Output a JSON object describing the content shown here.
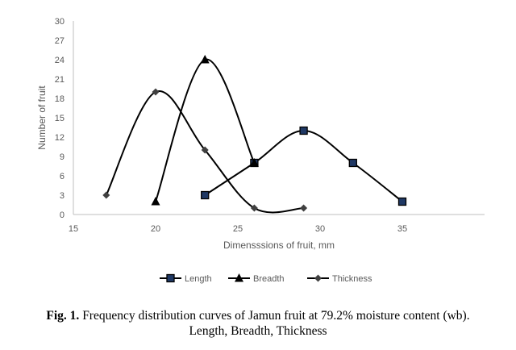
{
  "chart_data": {
    "type": "line",
    "smooth": true,
    "xlabel": "Dimensssions of fruit, mm",
    "ylabel": "Number of fruit",
    "xlim": [
      15,
      40
    ],
    "ylim": [
      0,
      30
    ],
    "xticks": [
      15,
      20,
      25,
      30,
      35
    ],
    "yticks": [
      0,
      3,
      6,
      9,
      12,
      15,
      18,
      21,
      24,
      27,
      30
    ],
    "grid": false,
    "legend_position": "bottom",
    "series": [
      {
        "name": "Length",
        "marker": "square",
        "color": "#000000",
        "markerFill": "#1f3864",
        "points": [
          [
            23,
            3
          ],
          [
            26,
            8
          ],
          [
            29,
            13
          ],
          [
            32,
            8
          ],
          [
            35,
            2
          ]
        ]
      },
      {
        "name": "Breadth",
        "marker": "triangle",
        "color": "#000000",
        "markerFill": "#000000",
        "points": [
          [
            20,
            2
          ],
          [
            23,
            24
          ],
          [
            26,
            8
          ]
        ]
      },
      {
        "name": "Thickness",
        "marker": "diamond",
        "color": "#000000",
        "markerFill": "#404040",
        "points": [
          [
            17,
            3
          ],
          [
            20,
            19
          ],
          [
            23,
            10
          ],
          [
            26,
            1
          ],
          [
            29,
            1
          ]
        ]
      }
    ]
  },
  "caption": {
    "label": "Fig. 1.",
    "line1": " Frequency distribution curves of Jamun fruit at 79.2% moisture content (wb).",
    "line2": "Length, Breadth, Thickness"
  }
}
